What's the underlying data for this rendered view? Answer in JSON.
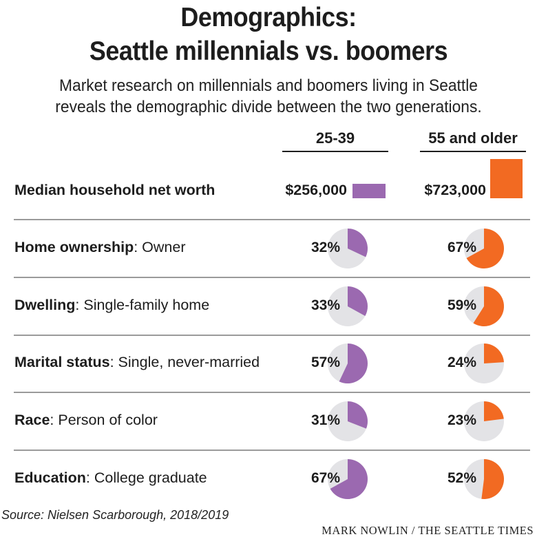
{
  "title_line1": "Demographics:",
  "title_line2": "Seattle millennials vs. boomers",
  "subtitle_line1": "Market research on millennials and boomers living in Seattle",
  "subtitle_line2": "reveals the demographic divide between the two generations.",
  "columns": [
    "25-39",
    "55 and older"
  ],
  "colors": {
    "millennials": "#9b69b0",
    "boomers": "#f26a22",
    "pie_background": "#e3e3e6"
  },
  "net_worth": {
    "label": "Median household net worth",
    "values_text": [
      "$256,000",
      "$723,000"
    ],
    "values": [
      256000,
      723000
    ]
  },
  "rows": [
    {
      "category": "Home ownership",
      "detail": ": Owner",
      "values": [
        32,
        67
      ],
      "labels": [
        "32%",
        "67%"
      ]
    },
    {
      "category": "Dwelling",
      "detail": ": Single-family home",
      "values": [
        33,
        59
      ],
      "labels": [
        "33%",
        "59%"
      ]
    },
    {
      "category": "Marital status",
      "detail": ": Single, never-married",
      "values": [
        57,
        24
      ],
      "labels": [
        "57%",
        "24%"
      ]
    },
    {
      "category": "Race",
      "detail": ": Person of color",
      "values": [
        31,
        23
      ],
      "labels": [
        "31%",
        "23%"
      ]
    },
    {
      "category": "Education",
      "detail": ": College graduate",
      "values": [
        67,
        52
      ],
      "labels": [
        "67%",
        "52%"
      ]
    }
  ],
  "source": "Source: Nielsen Scarborough, 2018/2019",
  "credit": "MARK NOWLIN / THE SEATTLE TIMES",
  "chart_data": {
    "type": "pie",
    "title": "Demographics: Seattle millennials vs. boomers",
    "subtitle": "Market research on millennials and boomers living in Seattle reveals the demographic divide between the two generations.",
    "series": [
      {
        "name": "25-39",
        "net_worth": 256000,
        "values": [
          32,
          33,
          57,
          31,
          67
        ]
      },
      {
        "name": "55 and older",
        "net_worth": 723000,
        "values": [
          67,
          59,
          24,
          23,
          52
        ]
      }
    ],
    "categories": [
      "Home ownership: Owner",
      "Dwelling: Single-family home",
      "Marital status: Single, never-married",
      "Race: Person of color",
      "Education: College graduate"
    ],
    "units": "percent"
  }
}
